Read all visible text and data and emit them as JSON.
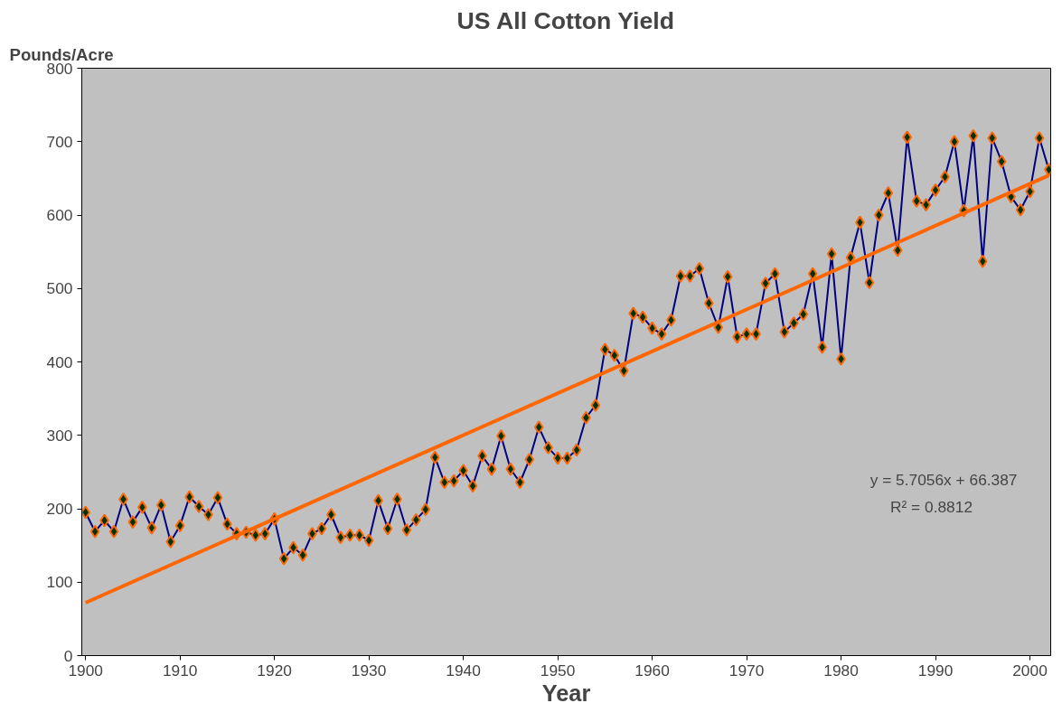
{
  "chart_data": {
    "type": "line",
    "title": "US All Cotton Yield",
    "xlabel": "Year",
    "ylabel": "Pounds/Acre",
    "x": [
      1900,
      1901,
      1902,
      1903,
      1904,
      1905,
      1906,
      1907,
      1908,
      1909,
      1910,
      1911,
      1912,
      1913,
      1914,
      1915,
      1916,
      1917,
      1918,
      1919,
      1920,
      1921,
      1922,
      1923,
      1924,
      1925,
      1926,
      1927,
      1928,
      1929,
      1930,
      1931,
      1932,
      1933,
      1934,
      1935,
      1936,
      1937,
      1938,
      1939,
      1940,
      1941,
      1942,
      1943,
      1944,
      1945,
      1946,
      1947,
      1948,
      1949,
      1950,
      1951,
      1952,
      1953,
      1954,
      1955,
      1956,
      1957,
      1958,
      1959,
      1960,
      1961,
      1962,
      1963,
      1964,
      1965,
      1966,
      1967,
      1968,
      1969,
      1970,
      1971,
      1972,
      1973,
      1974,
      1975,
      1976,
      1977,
      1978,
      1979,
      1980,
      1981,
      1982,
      1983,
      1984,
      1985,
      1986,
      1987,
      1988,
      1989,
      1990,
      1991,
      1992,
      1993,
      1994,
      1995,
      1996,
      1997,
      1998,
      1999,
      2000,
      2001,
      2002
    ],
    "series": [
      {
        "color": "#000080",
        "marker": "diamond",
        "values": [
          195,
          169,
          184,
          169,
          213,
          182,
          202,
          174,
          205,
          155,
          177,
          216,
          203,
          192,
          215,
          179,
          166,
          168,
          164,
          166,
          186,
          132,
          147,
          137,
          166,
          173,
          192,
          161,
          164,
          164,
          157,
          211,
          173,
          213,
          171,
          185,
          199,
          270,
          236,
          238,
          252,
          231,
          272,
          254,
          299,
          254,
          236,
          267,
          311,
          283,
          269,
          269,
          280,
          324,
          341,
          417,
          409,
          388,
          466,
          461,
          446,
          438,
          457,
          517,
          517,
          527,
          480,
          447,
          516,
          434,
          438,
          438,
          507,
          520,
          441,
          453,
          465,
          520,
          420,
          547,
          404,
          542,
          590,
          508,
          600,
          630,
          552,
          706,
          619,
          614,
          634,
          652,
          700,
          606,
          708,
          537,
          705,
          673,
          625,
          607,
          632,
          705,
          662
        ]
      },
      {
        "type": "line",
        "color": "#ff6600",
        "marker": "none",
        "x": [
          1900,
          2002
        ],
        "values": [
          72,
          654
        ]
      }
    ],
    "xlim": [
      1899.6,
      2002.2
    ],
    "xticks": [
      1900,
      1910,
      1920,
      1930,
      1940,
      1950,
      1960,
      1970,
      1980,
      1990,
      2000
    ],
    "ylim": [
      0,
      800
    ],
    "yticks": [
      0,
      100,
      200,
      300,
      400,
      500,
      600,
      700,
      800
    ],
    "grid": false,
    "annotations": [
      "y = 5.7056x + 66.387",
      "R² = 0.8812"
    ]
  }
}
